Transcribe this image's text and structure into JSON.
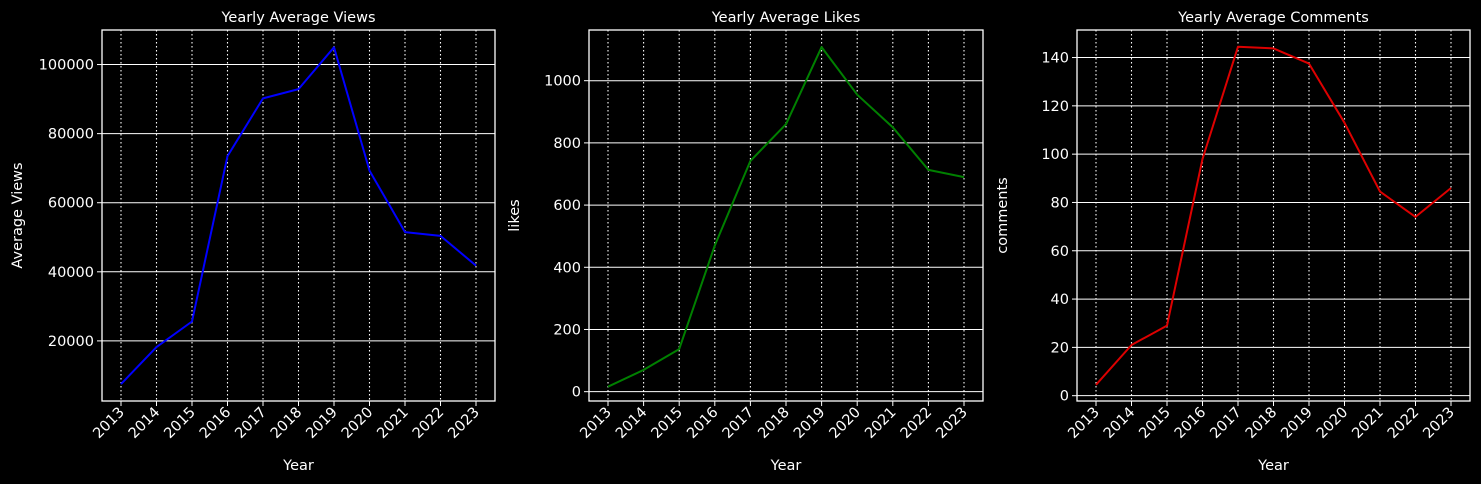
{
  "figure": {
    "background": "#000000",
    "foreground": "#ffffff"
  },
  "chart_data": [
    {
      "type": "line",
      "title": "Yearly Average Views",
      "xlabel": "Year",
      "ylabel": "Average Views",
      "x": [
        "2013",
        "2014",
        "2015",
        "2016",
        "2017",
        "2018",
        "2019",
        "2020",
        "2021",
        "2022",
        "2023"
      ],
      "series": [
        {
          "values": [
            7500,
            18200,
            25600,
            73500,
            90200,
            92900,
            105000,
            69300,
            51500,
            50400,
            41800
          ],
          "color": "#0000ff"
        }
      ],
      "ylim": [
        2600,
        110000
      ],
      "yticks": [
        20000,
        40000,
        60000,
        80000,
        100000
      ],
      "ytick_labels": [
        "20000",
        "40000",
        "60000",
        "80000",
        "100000"
      ],
      "grid": {
        "y": "solid",
        "x": "dotted"
      },
      "xtick_rotation": 45
    },
    {
      "type": "line",
      "title": "Yearly Average Likes",
      "xlabel": "Year",
      "ylabel": "likes",
      "x": [
        "2013",
        "2014",
        "2015",
        "2016",
        "2017",
        "2018",
        "2019",
        "2020",
        "2021",
        "2022",
        "2023"
      ],
      "series": [
        {
          "values": [
            16,
            70,
            137,
            470,
            742,
            860,
            1108,
            955,
            850,
            713,
            690
          ],
          "color": "#008000"
        }
      ],
      "ylim": [
        -30,
        1163
      ],
      "yticks": [
        0,
        200,
        400,
        600,
        800,
        1000
      ],
      "ytick_labels": [
        "0",
        "200",
        "400",
        "600",
        "800",
        "1000"
      ],
      "grid": {
        "y": "solid",
        "x": "dotted"
      },
      "xtick_rotation": 45
    },
    {
      "type": "line",
      "title": "Yearly Average Comments",
      "xlabel": "Year",
      "ylabel": "comments",
      "x": [
        "2013",
        "2014",
        "2015",
        "2016",
        "2017",
        "2018",
        "2019",
        "2020",
        "2021",
        "2022",
        "2023"
      ],
      "series": [
        {
          "values": [
            4.5,
            21,
            29,
            98,
            144.5,
            143.8,
            137.5,
            113,
            84.5,
            74,
            86
          ],
          "color": "#dd0000"
        }
      ],
      "ylim": [
        -2.2,
        151.4
      ],
      "yticks": [
        0,
        20,
        40,
        60,
        80,
        100,
        120,
        140
      ],
      "ytick_labels": [
        "0",
        "20",
        "40",
        "60",
        "80",
        "100",
        "120",
        "140"
      ],
      "grid": {
        "y": "solid",
        "x": "dotted"
      },
      "xtick_rotation": 45
    }
  ]
}
